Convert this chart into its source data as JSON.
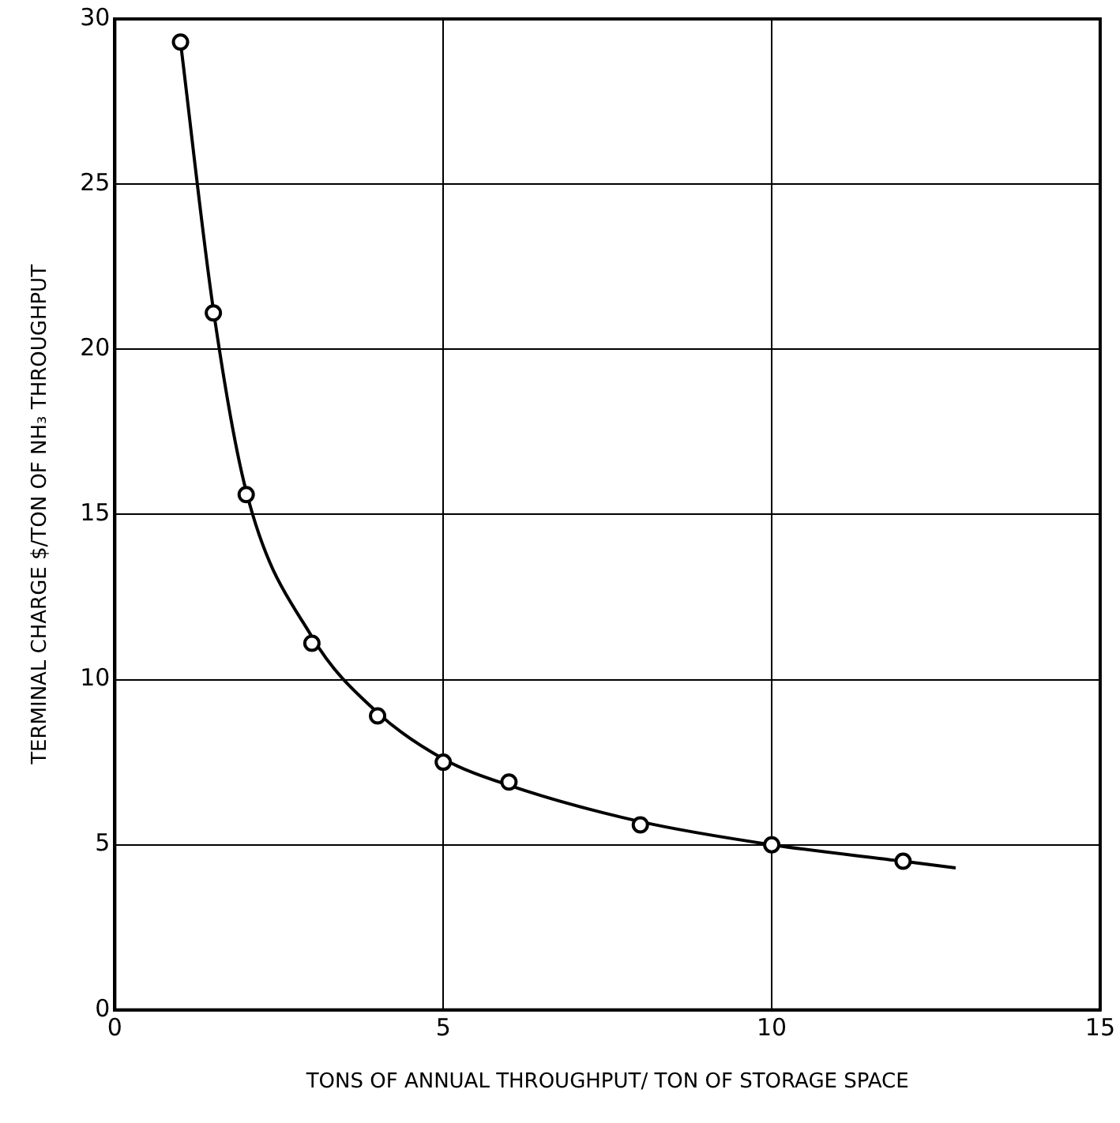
{
  "chart_data": {
    "type": "scatter",
    "xlabel": "TONS OF ANNUAL THROUGHPUT/ TON OF STORAGE SPACE",
    "ylabel": "TERMINAL CHARGE $/TON OF NH₃ THROUGHPUT",
    "x": [
      1,
      1.5,
      2,
      3,
      4,
      5,
      6,
      8,
      10,
      12
    ],
    "series": [
      {
        "color": "#000000",
        "marker": "circle",
        "values": [
          29.3,
          21.1,
          15.6,
          11.1,
          8.9,
          7.5,
          6.9,
          5.6,
          5.0,
          4.5
        ]
      },
      {
        "type": "line",
        "color": "#000000",
        "marker": "none",
        "line_style": "solid",
        "x": [
          1,
          1.5,
          2,
          3,
          4,
          5,
          6,
          8,
          10,
          12,
          12.8
        ],
        "values": [
          29.3,
          21.2,
          15.7,
          11.3,
          9.0,
          7.6,
          6.8,
          5.7,
          5.0,
          4.5,
          4.3
        ]
      }
    ],
    "xlim": [
      0,
      15
    ],
    "xticks": [
      0,
      5,
      10,
      15
    ],
    "ylim": [
      0,
      30
    ],
    "yticks": [
      0,
      5,
      10,
      15,
      20,
      25,
      30
    ],
    "grid": true,
    "legend": false
  }
}
